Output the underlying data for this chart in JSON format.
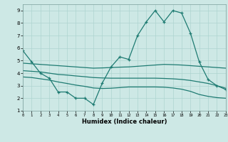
{
  "title": "",
  "xlabel": "Humidex (Indice chaleur)",
  "xlim": [
    0,
    23
  ],
  "ylim": [
    1,
    9.5
  ],
  "xticks": [
    0,
    1,
    2,
    3,
    4,
    5,
    6,
    7,
    8,
    9,
    10,
    11,
    12,
    13,
    14,
    15,
    16,
    17,
    18,
    19,
    20,
    21,
    22,
    23
  ],
  "yticks": [
    1,
    2,
    3,
    4,
    5,
    6,
    7,
    8,
    9
  ],
  "bg_color": "#cde8e5",
  "grid_color": "#aed4d0",
  "line_color": "#1e7b72",
  "line1_y": [
    5.8,
    4.9,
    4.0,
    3.6,
    2.5,
    2.5,
    2.0,
    2.0,
    1.5,
    3.2,
    4.5,
    5.3,
    5.1,
    7.0,
    8.1,
    9.0,
    8.1,
    9.0,
    8.8,
    7.2,
    4.9,
    3.5,
    3.0,
    2.7
  ],
  "line2_y": [
    4.8,
    4.75,
    4.7,
    4.65,
    4.6,
    4.55,
    4.5,
    4.45,
    4.4,
    4.42,
    4.45,
    4.48,
    4.5,
    4.55,
    4.6,
    4.65,
    4.7,
    4.68,
    4.65,
    4.6,
    4.55,
    4.5,
    4.45,
    4.4
  ],
  "line3_y": [
    4.2,
    4.15,
    4.1,
    4.0,
    3.9,
    3.85,
    3.78,
    3.72,
    3.65,
    3.62,
    3.6,
    3.6,
    3.6,
    3.6,
    3.6,
    3.6,
    3.58,
    3.55,
    3.5,
    3.42,
    3.3,
    3.18,
    3.0,
    2.8
  ],
  "line4_y": [
    3.7,
    3.65,
    3.55,
    3.45,
    3.3,
    3.18,
    3.05,
    2.95,
    2.82,
    2.78,
    2.8,
    2.85,
    2.9,
    2.9,
    2.9,
    2.9,
    2.88,
    2.82,
    2.72,
    2.55,
    2.3,
    2.15,
    2.05,
    2.0
  ]
}
